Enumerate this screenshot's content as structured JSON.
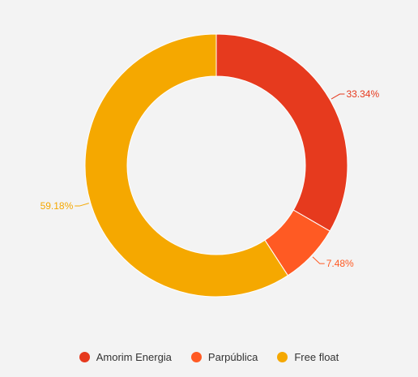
{
  "chart_data": {
    "type": "pie",
    "variant": "donut",
    "categories": [
      "Amorim Energia",
      "Parpública",
      "Free float"
    ],
    "values": [
      33.34,
      7.48,
      59.18
    ],
    "data_labels": [
      "33.34%",
      "7.48%",
      "59.18%"
    ],
    "colors": [
      "#e63a1e",
      "#ff5a23",
      "#f5a800"
    ],
    "title": "",
    "legend_position": "bottom-center"
  },
  "legend": {
    "items": [
      {
        "label": "Amorim Energia",
        "color": "#e63a1e"
      },
      {
        "label": "Parpública",
        "color": "#ff5a23"
      },
      {
        "label": "Free float",
        "color": "#f5a800"
      }
    ]
  }
}
